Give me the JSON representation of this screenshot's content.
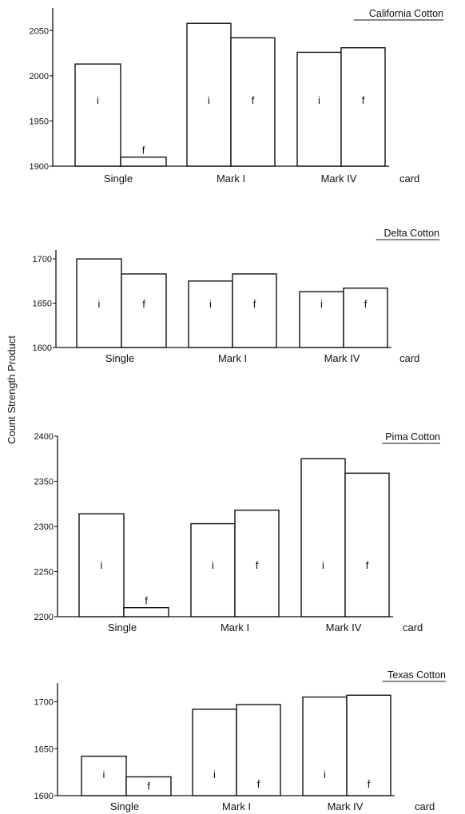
{
  "chart_data": {
    "type": "bar",
    "ylabel": "Count Strength Product",
    "panels": [
      {
        "title": "California Cotton",
        "xlabel": "card",
        "categories": [
          "Single",
          "Mark I",
          "Mark IV"
        ],
        "series": [
          {
            "name": "i",
            "values": [
              2013,
              2058,
              2026
            ]
          },
          {
            "name": "f",
            "values": [
              1910,
              2042,
              2031
            ]
          }
        ],
        "ylim": [
          1900,
          2075
        ],
        "yticks": [
          1900,
          1950,
          2000,
          2050
        ],
        "ytick_labels": [
          "1900",
          "1950",
          "2000",
          "2050"
        ]
      },
      {
        "title": "Delta Cotton",
        "xlabel": "card",
        "categories": [
          "Single",
          "Mark I",
          "Mark IV"
        ],
        "series": [
          {
            "name": "i",
            "values": [
              1700,
              1675,
              1663
            ]
          },
          {
            "name": "f",
            "values": [
              1683,
              1683,
              1667
            ]
          }
        ],
        "ylim": [
          1600,
          1710
        ],
        "yticks": [
          1600,
          1650,
          1700
        ],
        "ytick_labels": [
          "1600",
          "1650",
          "1700"
        ]
      },
      {
        "title": "Pima Cotton",
        "xlabel": "card",
        "categories": [
          "Single",
          "Mark I",
          "Mark IV"
        ],
        "series": [
          {
            "name": "i",
            "values": [
              2314,
              2303,
              2375
            ]
          },
          {
            "name": "f",
            "values": [
              2210,
              2318,
              2359
            ]
          }
        ],
        "ylim": [
          2200,
          2400
        ],
        "yticks": [
          2200,
          2250,
          2300,
          2350,
          2400
        ],
        "ytick_labels": [
          "2200",
          "2250",
          "2300",
          "2350",
          "2400"
        ]
      },
      {
        "title": "Texas Cotton",
        "xlabel": "card",
        "categories": [
          "Single",
          "Mark I",
          "Mark IV"
        ],
        "series": [
          {
            "name": "i",
            "values": [
              1642,
              1692,
              1705
            ]
          },
          {
            "name": "f",
            "values": [
              1620,
              1697,
              1707
            ]
          }
        ],
        "ylim": [
          1600,
          1720
        ],
        "yticks": [
          1600,
          1650,
          1700
        ],
        "ytick_labels": [
          "1600",
          "1650",
          "1700"
        ]
      }
    ]
  }
}
